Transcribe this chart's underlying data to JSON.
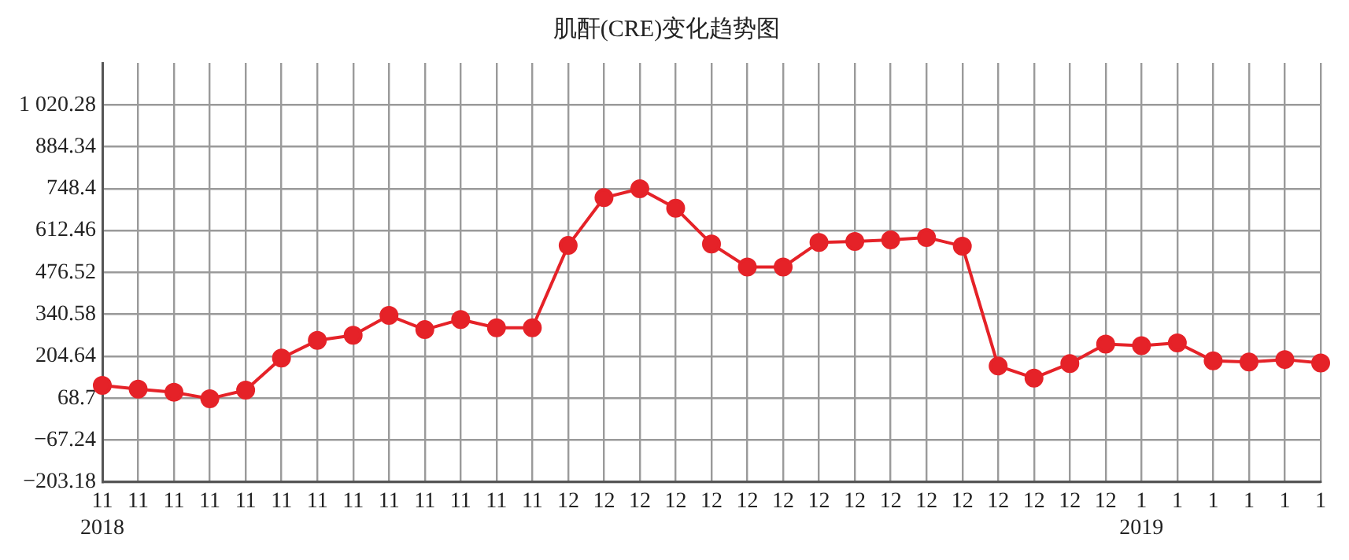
{
  "chart_data": {
    "type": "line",
    "title": "肌酐(CRE)变化趋势图",
    "categories": [
      "11\n2018",
      "11",
      "11",
      "11",
      "11",
      "11",
      "11",
      "11",
      "11",
      "11",
      "11",
      "11",
      "11",
      "12",
      "12",
      "12",
      "12",
      "12",
      "12",
      "12",
      "12",
      "12",
      "12",
      "12",
      "12",
      "12",
      "12",
      "12",
      "12",
      "1\n2019",
      "1",
      "1",
      "1",
      "1",
      "1"
    ],
    "series": [
      {
        "color": "#e52228",
        "values": [
          110,
          98,
          88,
          67,
          95,
          199,
          256,
          273,
          337,
          291,
          324,
          297,
          297,
          564,
          719,
          748,
          685,
          569,
          494,
          494,
          574,
          577,
          582,
          590,
          562,
          173,
          134,
          181,
          244,
          239,
          248,
          190,
          186,
          194,
          183
        ]
      }
    ],
    "ylim": [
      -203.18,
      1156.22
    ],
    "yticks": [
      {
        "value": -203.18,
        "label": "−203.18"
      },
      {
        "value": -67.24,
        "label": "−67.24"
      },
      68.7,
      204.64,
      340.58,
      476.52,
      612.46,
      748.4,
      884.34,
      {
        "value": 1020.28,
        "label": "1 020.28"
      }
    ],
    "grid": true,
    "marker": "circle",
    "line_style": "solid"
  }
}
